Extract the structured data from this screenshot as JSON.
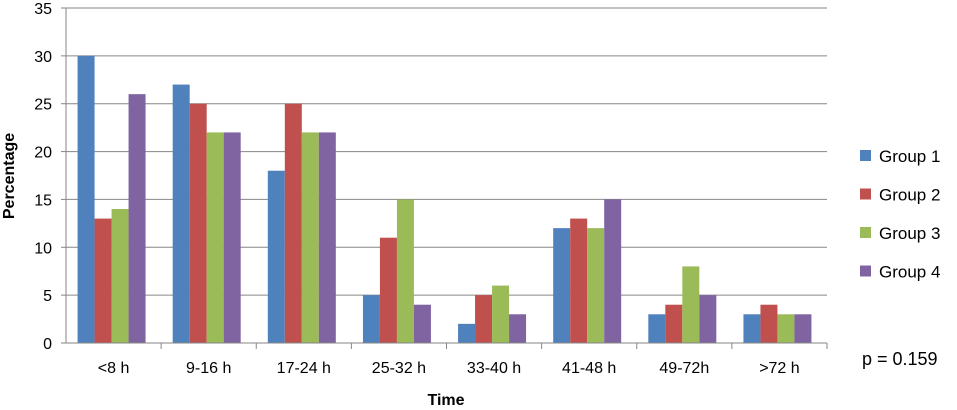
{
  "chart_data": {
    "type": "bar",
    "title": "",
    "xlabel": "Time",
    "ylabel": "Percentage",
    "ylim": [
      0,
      35
    ],
    "yticks": [
      0,
      5,
      10,
      15,
      20,
      25,
      30,
      35
    ],
    "grid": true,
    "legend_position": "right",
    "categories": [
      "<8 h",
      "9-16 h",
      "17-24 h",
      "25-32 h",
      "33-40 h",
      "41-48 h",
      "49-72h",
      ">72 h"
    ],
    "series": [
      {
        "name": "Group 1",
        "color": "#4F81BD",
        "values": [
          30,
          27,
          18,
          5,
          2,
          12,
          3,
          3
        ]
      },
      {
        "name": "Group 2",
        "color": "#C0504D",
        "values": [
          13,
          25,
          25,
          11,
          5,
          13,
          4,
          4
        ]
      },
      {
        "name": "Group 3",
        "color": "#9BBB59",
        "values": [
          14,
          22,
          22,
          15,
          6,
          12,
          8,
          3
        ]
      },
      {
        "name": "Group 4",
        "color": "#8064A2",
        "values": [
          26,
          22,
          22,
          4,
          3,
          15,
          5,
          3
        ]
      }
    ],
    "annotation": "p = 0.159"
  },
  "colors": {
    "grid": "#868686",
    "axis": "#868686",
    "background": "#ffffff"
  }
}
